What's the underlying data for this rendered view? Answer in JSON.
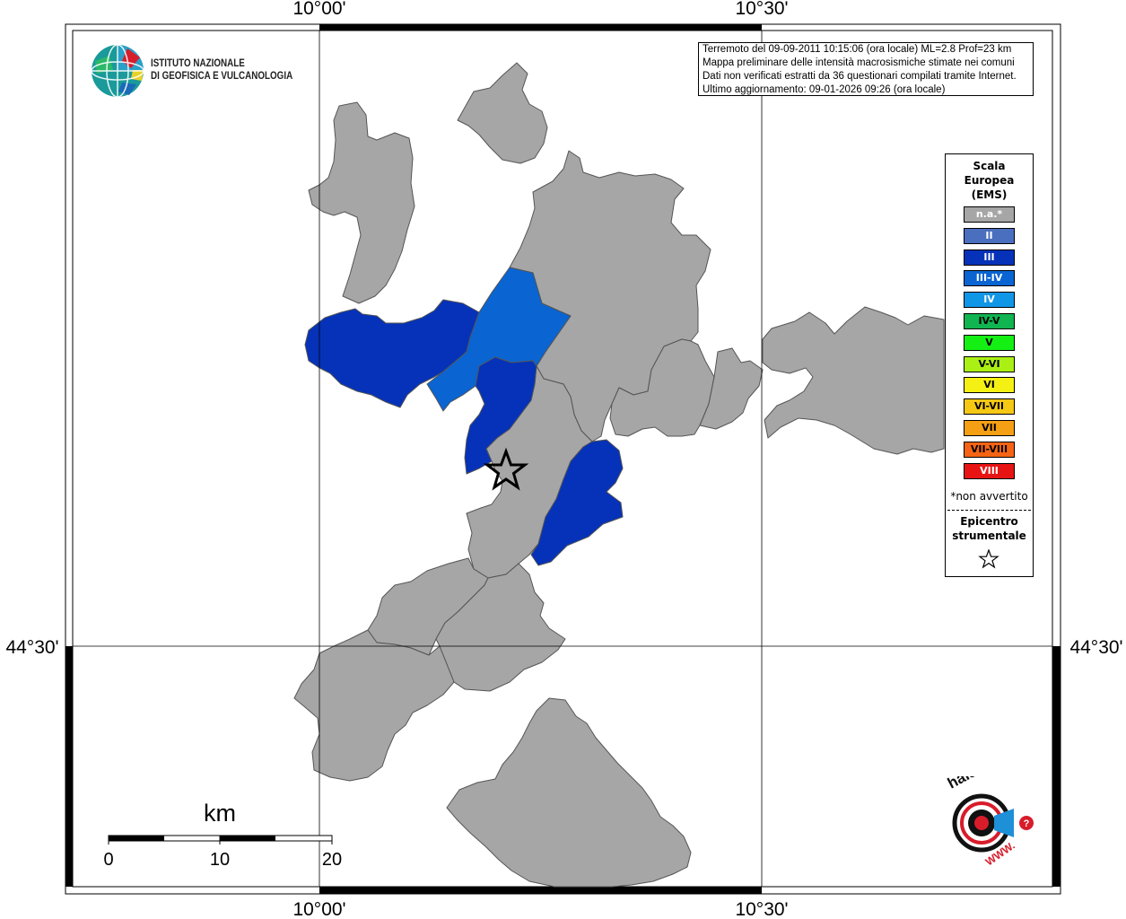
{
  "map": {
    "lon_labels": [
      "10°00'",
      "10°30'"
    ],
    "lat_labels": [
      "44°30'"
    ]
  },
  "info": {
    "lines": [
      "Terremoto del 09-09-2011 10:15:06 (ora locale) ML=2.8 Prof=23 km",
      "Mappa preliminare delle intensità macrosismiche stimate nei comuni",
      "Dati non verificati estratti da 36 questionari compilati tramite Internet.",
      "Ultimo aggiornamento: 09-01-2026 09:26 (ora locale)"
    ]
  },
  "legend": {
    "title_lines": [
      "Scala",
      "Europea",
      "(EMS)"
    ],
    "items": [
      {
        "label": "n.a.*",
        "color": "#a6a6a6",
        "text_color": "#ffffff"
      },
      {
        "label": "II",
        "color": "#4a6fbf",
        "text_color": "#ffffff"
      },
      {
        "label": "III",
        "color": "#0532b8",
        "text_color": "#ffffff"
      },
      {
        "label": "III-IV",
        "color": "#0a64d2",
        "text_color": "#ffffff"
      },
      {
        "label": "IV",
        "color": "#1096e6",
        "text_color": "#ffffff"
      },
      {
        "label": "IV-V",
        "color": "#10b450",
        "text_color": "#000000"
      },
      {
        "label": "V",
        "color": "#14f014",
        "text_color": "#000000"
      },
      {
        "label": "V-VI",
        "color": "#aaf014",
        "text_color": "#000000"
      },
      {
        "label": "VI",
        "color": "#f5f014",
        "text_color": "#000000"
      },
      {
        "label": "VI-VII",
        "color": "#f5c814",
        "text_color": "#000000"
      },
      {
        "label": "VII",
        "color": "#f5a014",
        "text_color": "#000000"
      },
      {
        "label": "VII-VIII",
        "color": "#f56414",
        "text_color": "#000000"
      },
      {
        "label": "VIII",
        "color": "#e81414",
        "text_color": "#ffffff"
      }
    ],
    "note": "*non avvertito",
    "epicenter_lines": [
      "Epicentro",
      "strumentale"
    ]
  },
  "scalebar": {
    "unit": "km",
    "ticks": [
      "0",
      "10",
      "20"
    ]
  },
  "logos": {
    "ingv_lines": [
      "ISTITUTO NAZIONALE",
      "DI GEOFISICA E VULCANOLOGIA"
    ],
    "hsit_text": "haisentitoilterremoto.it",
    "hsit_www": "WWW."
  },
  "colors": {
    "na": "#a6a6a6",
    "III": "#0532b8",
    "III-IV": "#0a64d2"
  }
}
